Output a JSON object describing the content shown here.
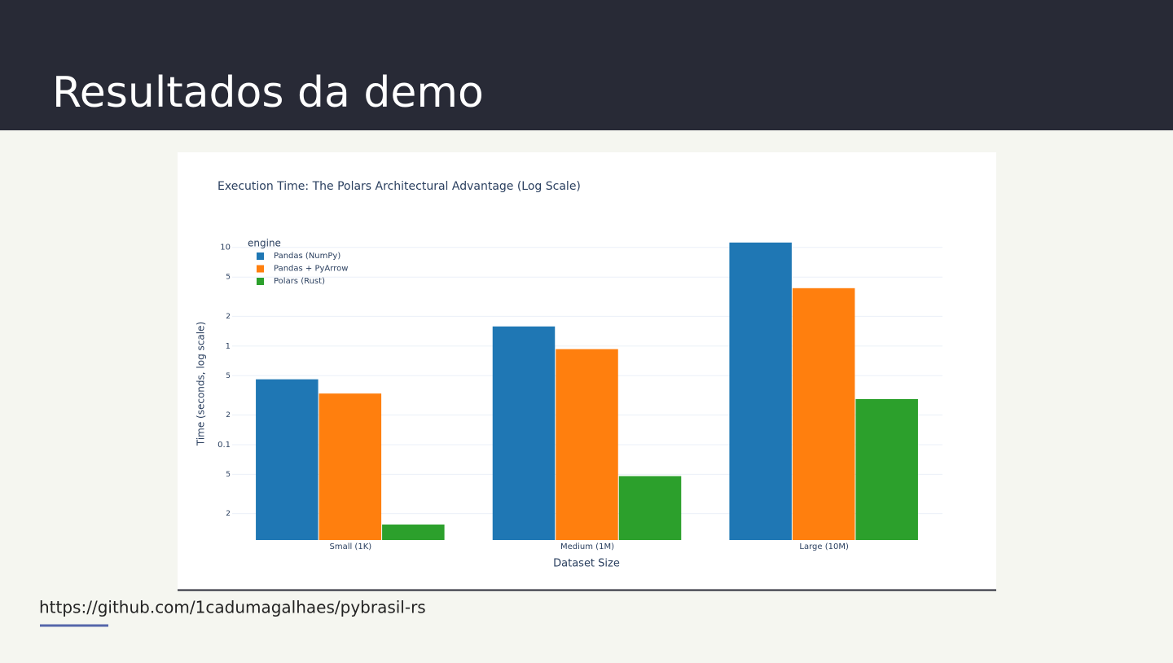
{
  "slide_title": "Resultados da demo",
  "link": "https://github.com/1cadumagalhaes/pybrasil-rs",
  "chart_data": {
    "type": "bar",
    "title": "Execution Time: The Polars Architectural Advantage (Log Scale)",
    "x_label": "Dataset Size",
    "y_label": "Time (seconds, log scale)",
    "legend_title": "engine",
    "legend": "top-left",
    "log_y": true,
    "grid": true,
    "categories": [
      "Small (1K)",
      "Medium (1M)",
      "Large (10M)"
    ],
    "series": [
      {
        "name": "Pandas (NumPy)",
        "color": "#1f77b4",
        "values": [
          0.46,
          1.58,
          11.2
        ]
      },
      {
        "name": "Pandas + PyArrow",
        "color": "#ff7f0e",
        "values": [
          0.33,
          0.93,
          3.86
        ]
      },
      {
        "name": "Polars (Rust)",
        "color": "#2ca02c",
        "values": [
          0.0155,
          0.048,
          0.29
        ]
      }
    ],
    "ylim": [
      0.0108,
      12.5
    ],
    "yticks": [
      {
        "value": 0.02,
        "label": "2"
      },
      {
        "value": 0.05,
        "label": "5"
      },
      0.1,
      {
        "value": 0.2,
        "label": "2"
      },
      {
        "value": 0.5,
        "label": "5"
      },
      1,
      {
        "value": 2,
        "label": "2"
      },
      {
        "value": 5,
        "label": "5"
      },
      10
    ]
  }
}
